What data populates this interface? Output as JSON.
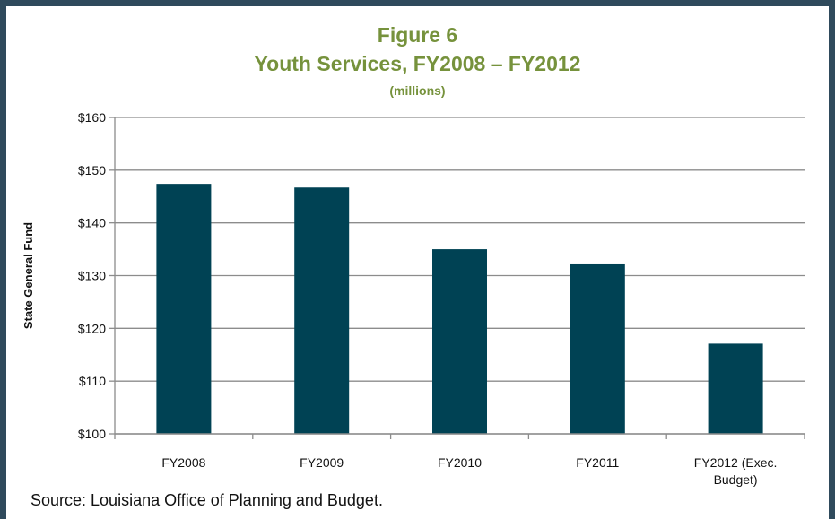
{
  "chart_data": {
    "type": "bar",
    "title": "Figure 6",
    "subtitle": "Youth Services, FY2008 – FY2012",
    "units": "(millions)",
    "ylabel": "State General Fund",
    "xlabel": "",
    "categories": [
      [
        "FY2008"
      ],
      [
        "FY2009"
      ],
      [
        "FY2010"
      ],
      [
        "FY2011"
      ],
      [
        "FY2012 (Exec.",
        "Budget)"
      ]
    ],
    "values": [
      147.4,
      146.7,
      135.0,
      132.3,
      117.1
    ],
    "ylim": [
      100,
      160
    ],
    "yticks": [
      "$100",
      "$110",
      "$120",
      "$130",
      "$140",
      "$150",
      "$160"
    ],
    "grid": true,
    "legend": "none",
    "bar_color": "#004254"
  },
  "source": "Source: Louisiana Office of Planning and Budget."
}
